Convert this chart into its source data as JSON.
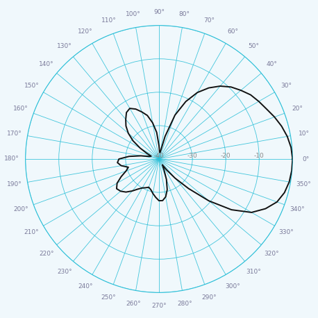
{
  "grid_color": "#2ec0d8",
  "pattern_color": "#111111",
  "background_color": "#f0f8fc",
  "r_min_dB": -40,
  "r_max_dB": 0,
  "r_labels": [
    "-40",
    "-30",
    "-20",
    "-10"
  ],
  "r_label_dBs": [
    -40,
    -30,
    -20,
    -10
  ],
  "pattern_angles_deg": [
    0,
    5,
    10,
    15,
    20,
    25,
    30,
    35,
    40,
    45,
    50,
    55,
    60,
    65,
    70,
    75,
    80,
    85,
    90,
    95,
    100,
    105,
    110,
    115,
    120,
    125,
    130,
    135,
    140,
    145,
    150,
    155,
    160,
    165,
    170,
    175,
    180,
    185,
    190,
    195,
    200,
    205,
    210,
    215,
    220,
    225,
    230,
    235,
    240,
    245,
    250,
    255,
    260,
    265,
    270,
    275,
    280,
    285,
    290,
    295,
    300,
    305,
    310,
    315,
    320,
    325,
    330,
    335,
    340,
    345,
    350,
    355,
    360
  ],
  "pattern_dB": [
    0,
    -0.3,
    -1.0,
    -2.0,
    -3.2,
    -4.5,
    -5.5,
    -6.5,
    -8.0,
    -9.5,
    -11.5,
    -14.0,
    -17.0,
    -21.0,
    -26.0,
    -33.0,
    -38.0,
    -38.0,
    -36.0,
    -32.0,
    -29.0,
    -26.5,
    -25.0,
    -23.5,
    -22.5,
    -23.0,
    -24.5,
    -26.0,
    -28.0,
    -30.5,
    -33.5,
    -36.0,
    -37.5,
    -37.0,
    -34.5,
    -31.0,
    -28.0,
    -27.5,
    -28.5,
    -30.5,
    -29.5,
    -27.5,
    -25.5,
    -24.5,
    -25.0,
    -26.0,
    -27.5,
    -29.0,
    -30.0,
    -30.5,
    -31.0,
    -30.5,
    -29.5,
    -28.5,
    -27.5,
    -27.5,
    -28.5,
    -30.5,
    -33.5,
    -36.5,
    -38.0,
    -36.0,
    -32.5,
    -27.5,
    -20.5,
    -13.5,
    -8.0,
    -4.8,
    -2.4,
    -1.1,
    -0.4,
    -0.1,
    0
  ]
}
